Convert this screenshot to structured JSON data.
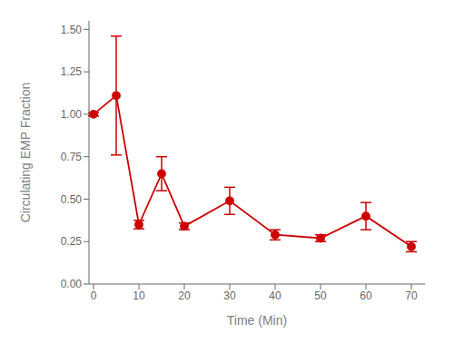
{
  "chart_data": {
    "type": "line",
    "xlabel": "Time (Min)",
    "ylabel": "Circulating EMP Fraction",
    "x": [
      0,
      5,
      10,
      15,
      20,
      30,
      40,
      50,
      60,
      70
    ],
    "values": [
      1.0,
      1.11,
      0.35,
      0.65,
      0.34,
      0.49,
      0.29,
      0.27,
      0.4,
      0.22
    ],
    "yerr": [
      0.01,
      0.35,
      0.025,
      0.1,
      0.02,
      0.08,
      0.03,
      0.02,
      0.08,
      0.03
    ],
    "color": "#CC0000",
    "marker": "circle",
    "xlim": [
      -1,
      73
    ],
    "ylim": [
      0.0,
      1.55
    ],
    "xticks": [
      0,
      10,
      20,
      30,
      40,
      50,
      60,
      70
    ],
    "yticks": [
      {
        "value": 0,
        "label": "0.00"
      },
      0.25,
      {
        "value": 0.5,
        "label": "0.50"
      },
      0.75,
      {
        "value": 1,
        "label": "1.00"
      },
      1.25,
      {
        "value": 1.5,
        "label": "1.50"
      }
    ]
  }
}
